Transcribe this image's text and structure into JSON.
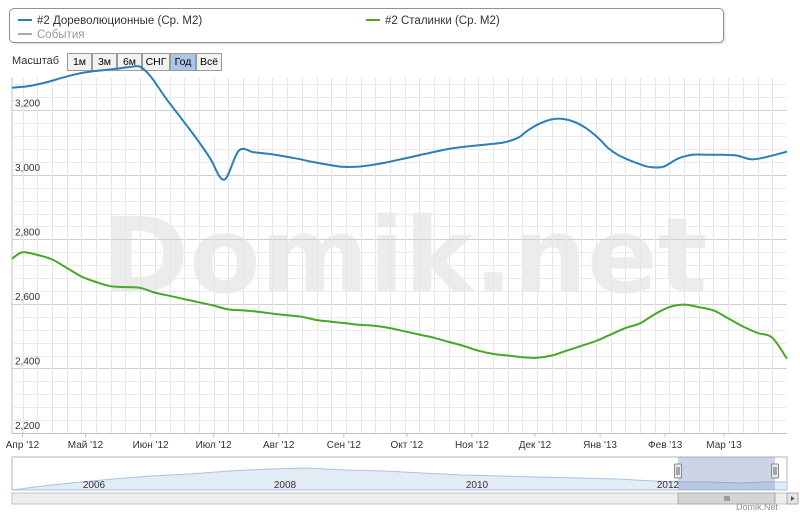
{
  "legend": {
    "items": [
      {
        "label": "#2 Дореволюционные (Ср. М2)",
        "color": "#2c7fb8"
      },
      {
        "label": "#2 Сталинки (Ср. М2)",
        "color": "#45a827"
      },
      {
        "label": "События",
        "color": "#aaaaaa"
      }
    ]
  },
  "zoom": {
    "label": "Масштаб",
    "buttons": [
      {
        "label": "1м",
        "active": false
      },
      {
        "label": "3м",
        "active": false
      },
      {
        "label": "6м",
        "active": false
      },
      {
        "label": "СНГ",
        "active": false
      },
      {
        "label": "Год",
        "active": true
      },
      {
        "label": "Всё",
        "active": false
      }
    ]
  },
  "watermark": "Domik.net",
  "credit": "Domik.Net",
  "navigator": {
    "labels": [
      "2006",
      "2008",
      "2010",
      "2012"
    ],
    "series_color": "#a9c4e2",
    "selection_color": "#6b87b5"
  },
  "chart_data": {
    "type": "line",
    "title": "",
    "xlabel": "",
    "ylabel": "",
    "grid": true,
    "x_ticks": [
      "Апр '12",
      "Май '12",
      "Июн '12",
      "Июл '12",
      "Авг '12",
      "Сен '12",
      "Окт '12",
      "Ноя '12",
      "Дек '12",
      "Янв '13",
      "Фев '13",
      "Мар '13"
    ],
    "y_ticks": [
      "3,200",
      "3,000",
      "2,800",
      "2,600",
      "2,400",
      "2,200"
    ],
    "ylim": [
      2200,
      3300
    ],
    "x_range": [
      "2012-03-27",
      "2013-03-31"
    ],
    "series": [
      {
        "name": "#2 Дореволюционные (Ср. М2)",
        "color": "#2c7fb8",
        "x": [
          "2012-03-27",
          "2012-04-04",
          "2012-04-12",
          "2012-04-20",
          "2012-04-28",
          "2012-05-06",
          "2012-05-14",
          "2012-05-22",
          "2012-05-27",
          "2012-06-01",
          "2012-06-08",
          "2012-06-15",
          "2012-06-22",
          "2012-06-29",
          "2012-07-06",
          "2012-07-13",
          "2012-07-20",
          "2012-07-27",
          "2012-08-03",
          "2012-08-10",
          "2012-08-17",
          "2012-08-24",
          "2012-08-31",
          "2012-09-07",
          "2012-09-14",
          "2012-09-21",
          "2012-09-28",
          "2012-10-05",
          "2012-10-12",
          "2012-10-19",
          "2012-10-26",
          "2012-11-02",
          "2012-11-09",
          "2012-11-16",
          "2012-11-23",
          "2012-11-27",
          "2012-12-03",
          "2012-12-10",
          "2012-12-17",
          "2012-12-24",
          "2012-12-31",
          "2013-01-05",
          "2013-01-10",
          "2013-01-17",
          "2013-01-24",
          "2013-01-31",
          "2013-02-07",
          "2013-02-14",
          "2013-02-21",
          "2013-02-28",
          "2013-03-07",
          "2013-03-14",
          "2013-03-21",
          "2013-03-31"
        ],
        "values": [
          3270,
          3275,
          3286,
          3301,
          3314,
          3322,
          3327,
          3334,
          3335,
          3305,
          3240,
          3180,
          3120,
          3055,
          2985,
          3075,
          3070,
          3065,
          3058,
          3050,
          3040,
          3032,
          3025,
          3025,
          3030,
          3038,
          3048,
          3058,
          3068,
          3078,
          3085,
          3090,
          3095,
          3100,
          3115,
          3135,
          3158,
          3173,
          3170,
          3150,
          3115,
          3082,
          3060,
          3040,
          3025,
          3025,
          3050,
          3062,
          3062,
          3062,
          3060,
          3048,
          3055,
          3072
        ]
      },
      {
        "name": "#2 Сталинки (Ср. М2)",
        "color": "#45a827",
        "x": [
          "2012-03-27",
          "2012-04-01",
          "2012-04-08",
          "2012-04-15",
          "2012-04-22",
          "2012-04-29",
          "2012-05-06",
          "2012-05-13",
          "2012-05-20",
          "2012-05-27",
          "2012-06-03",
          "2012-06-10",
          "2012-06-17",
          "2012-06-24",
          "2012-07-01",
          "2012-07-08",
          "2012-07-15",
          "2012-07-22",
          "2012-07-29",
          "2012-08-05",
          "2012-08-12",
          "2012-08-19",
          "2012-08-26",
          "2012-09-02",
          "2012-09-09",
          "2012-09-16",
          "2012-09-23",
          "2012-09-30",
          "2012-10-07",
          "2012-10-14",
          "2012-10-21",
          "2012-10-28",
          "2012-11-04",
          "2012-11-11",
          "2012-11-18",
          "2012-11-25",
          "2012-12-02",
          "2012-12-09",
          "2012-12-16",
          "2012-12-23",
          "2012-12-30",
          "2013-01-06",
          "2013-01-13",
          "2013-01-20",
          "2013-01-27",
          "2013-02-03",
          "2013-02-10",
          "2013-02-17",
          "2013-02-24",
          "2013-03-03",
          "2013-03-10",
          "2013-03-17",
          "2013-03-24",
          "2013-03-31"
        ],
        "values": [
          2740,
          2760,
          2752,
          2738,
          2712,
          2685,
          2668,
          2655,
          2652,
          2650,
          2635,
          2625,
          2615,
          2605,
          2595,
          2583,
          2580,
          2576,
          2570,
          2565,
          2560,
          2550,
          2545,
          2540,
          2535,
          2532,
          2525,
          2515,
          2505,
          2495,
          2482,
          2470,
          2455,
          2445,
          2440,
          2435,
          2433,
          2440,
          2455,
          2470,
          2485,
          2505,
          2525,
          2540,
          2568,
          2590,
          2598,
          2590,
          2580,
          2555,
          2530,
          2510,
          2495,
          2430
        ]
      }
    ]
  }
}
